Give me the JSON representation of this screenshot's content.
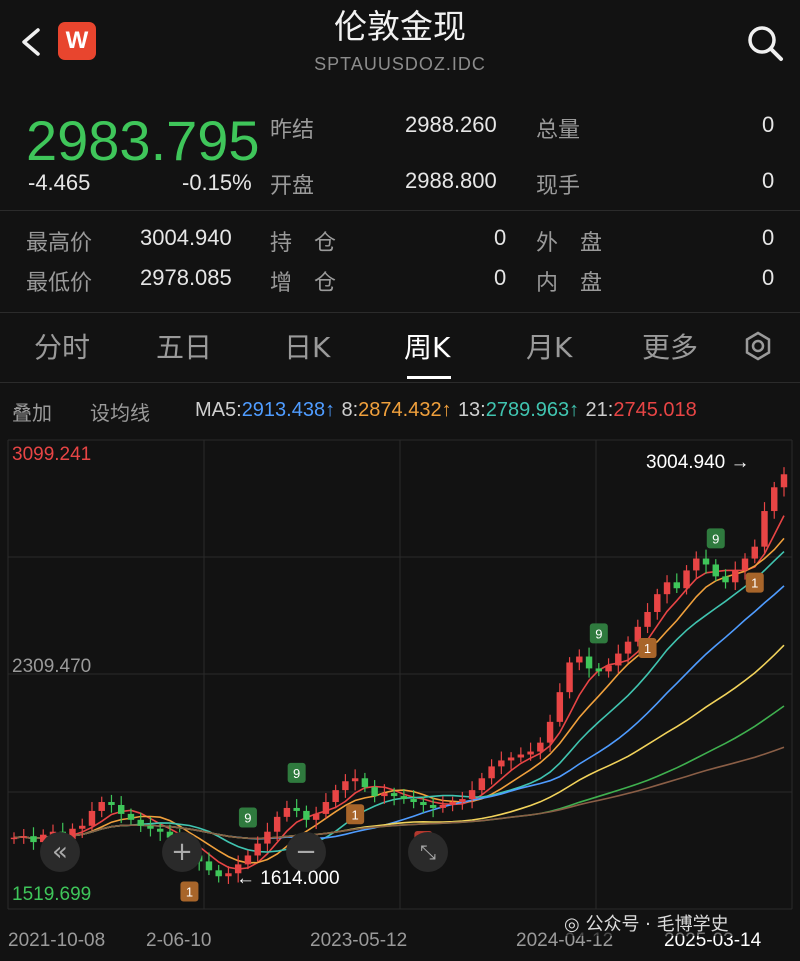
{
  "header": {
    "title": "伦敦金现",
    "subtitle": "SPTAUUSDOZ.IDC",
    "badge": "W"
  },
  "quote": {
    "price": "2983.795",
    "change": "-4.465",
    "change_pct": "-0.15%",
    "stats": [
      {
        "label": "昨结",
        "value": "2988.260"
      },
      {
        "label": "开盘",
        "value": "2988.800"
      },
      {
        "label": "总量",
        "value": "0"
      },
      {
        "label": "现手",
        "value": "0"
      },
      {
        "label": "最高价",
        "value": "3004.940"
      },
      {
        "label": "最低价",
        "value": "2978.085"
      },
      {
        "label": "持　仓",
        "value": "0"
      },
      {
        "label": "增　仓",
        "value": "0"
      },
      {
        "label": "外　盘",
        "value": "0"
      },
      {
        "label": "内　盘",
        "value": "0"
      }
    ]
  },
  "tabs": [
    "分时",
    "五日",
    "日K",
    "周K",
    "月K",
    "更多"
  ],
  "active_tab": "周K",
  "ma_bar": {
    "overlay": "叠加",
    "set_ma": "设均线",
    "ma5": {
      "label": "MA5:",
      "value": "2913.438↑",
      "color": "#4f9cff"
    },
    "ma8": {
      "label": "8:",
      "value": "2874.432↑",
      "color": "#f0a03c"
    },
    "ma13": {
      "label": "13:",
      "value": "2789.963↑",
      "color": "#40c4b0"
    },
    "ma21": {
      "label": "21:",
      "value": "2745.018",
      "color": "#e84545"
    }
  },
  "chart_data": {
    "type": "line",
    "y_top": "3099.241",
    "y_mid": "2309.470",
    "y_bottom": "1519.699",
    "ylim": [
      1519.699,
      3099.241
    ],
    "x_labels": [
      "2021-10-08",
      "2-06-10",
      "2023-05-12",
      "2024-04-12",
      "2025-03-14"
    ],
    "high_annotation": "3004.940",
    "low_annotation": "1614.000",
    "close_series": [
      1760,
      1765,
      1745,
      1770,
      1780,
      1755,
      1790,
      1800,
      1850,
      1880,
      1870,
      1840,
      1820,
      1800,
      1790,
      1780,
      1760,
      1730,
      1700,
      1680,
      1650,
      1630,
      1640,
      1670,
      1700,
      1740,
      1780,
      1830,
      1860,
      1850,
      1820,
      1840,
      1880,
      1920,
      1950,
      1960,
      1930,
      1900,
      1910,
      1900,
      1890,
      1880,
      1870,
      1860,
      1870,
      1880,
      1890,
      1920,
      1960,
      2000,
      2020,
      2030,
      2040,
      2050,
      2080,
      2150,
      2250,
      2350,
      2370,
      2330,
      2320,
      2340,
      2380,
      2420,
      2470,
      2520,
      2580,
      2620,
      2600,
      2660,
      2700,
      2680,
      2640,
      2620,
      2660,
      2700,
      2740,
      2860,
      2940,
      2983.795
    ],
    "ma_colors": [
      "#e84545",
      "#f0a03c",
      "#40c4b0",
      "#4f9cff",
      "#f2d35b",
      "#3fb04f",
      "#8a5e46"
    ],
    "markers": [
      {
        "i": 18,
        "label": "1",
        "kind": "down"
      },
      {
        "i": 24,
        "label": "9",
        "kind": "up"
      },
      {
        "i": 29,
        "label": "9",
        "kind": "up"
      },
      {
        "i": 35,
        "label": "1",
        "kind": "down"
      },
      {
        "i": 42,
        "label": "9",
        "kind": "down"
      },
      {
        "i": 60,
        "label": "9",
        "kind": "up"
      },
      {
        "i": 65,
        "label": "1",
        "kind": "down"
      },
      {
        "i": 72,
        "label": "9",
        "kind": "up"
      },
      {
        "i": 76,
        "label": "1",
        "kind": "down"
      }
    ]
  },
  "watermark": "公众号 · 毛博学史"
}
